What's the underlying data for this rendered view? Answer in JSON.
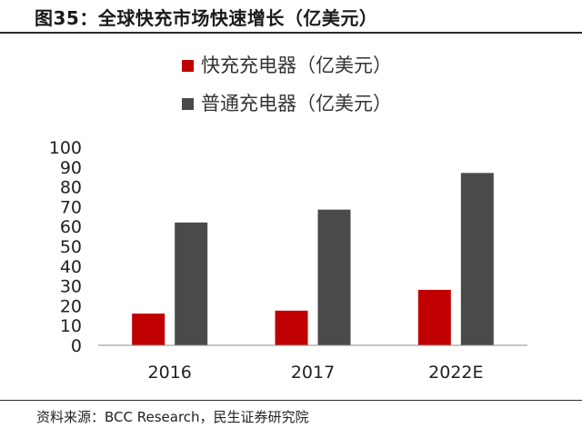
{
  "title": "图35：全球快充市场快速增长（亿美元）",
  "source": "资料来源：BCC Research，民生证券研究院",
  "chart_data": {
    "type": "bar",
    "categories": [
      "2016",
      "2017",
      "2022E"
    ],
    "series": [
      {
        "name": "快充充电器（亿美元）",
        "values": [
          16,
          17.5,
          28
        ],
        "color": "#c00000"
      },
      {
        "name": "普通充电器（亿美元）",
        "values": [
          62,
          68.5,
          87
        ],
        "color": "#4a4a4a"
      }
    ],
    "ylim": [
      0,
      100
    ],
    "yticks": [
      0,
      10,
      20,
      30,
      40,
      50,
      60,
      70,
      80,
      90,
      100
    ],
    "legend_position": "top",
    "grid": false,
    "xlabel": "",
    "ylabel": ""
  }
}
